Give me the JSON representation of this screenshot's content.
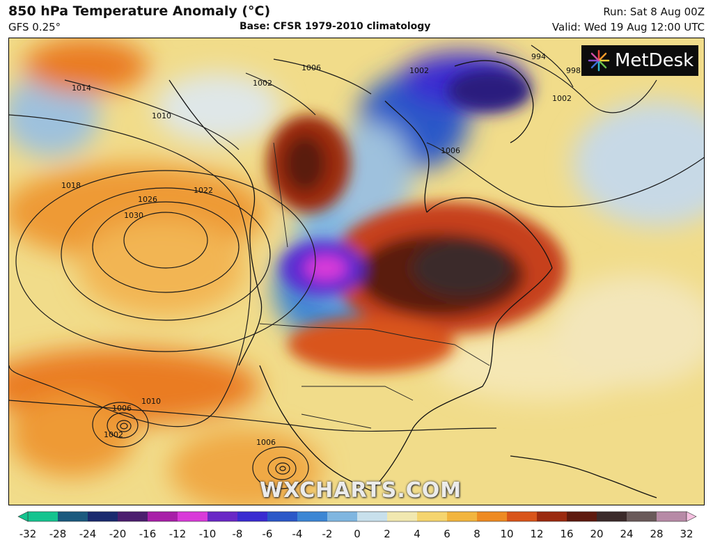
{
  "header": {
    "title": "850 hPa Temperature Anomaly (°C)",
    "model": "GFS 0.25°",
    "base": "Base: CFSR 1979-2010 climatology",
    "run": "Run: Sat 8 Aug 00Z",
    "valid": "Valid: Wed 19 Aug 12:00 UTC"
  },
  "map": {
    "isobar_labels": [
      "1014",
      "1018",
      "1026",
      "1022",
      "1030",
      "1010",
      "1006",
      "1002",
      "1006",
      "1006",
      "1002",
      "1010",
      "998",
      "994",
      "1002",
      "1002",
      "1006"
    ],
    "high_center": "1030",
    "logo_text": "MetDesk",
    "watermark": "WXCHARTS.COM"
  },
  "colorbar": {
    "ticks": [
      "-32",
      "-28",
      "-24",
      "-20",
      "-16",
      "-12",
      "-10",
      "-8",
      "-6",
      "-4",
      "-2",
      "0",
      "2",
      "4",
      "6",
      "8",
      "10",
      "12",
      "16",
      "20",
      "24",
      "28",
      "32"
    ],
    "colors": [
      "#15c48f",
      "#1b5a7e",
      "#1a2a6e",
      "#4b1e6e",
      "#a81fa8",
      "#d93ad9",
      "#6a28c6",
      "#3a2bd1",
      "#2b58c8",
      "#3c86d4",
      "#7fb6e0",
      "#c8e0ec",
      "#f1e8b0",
      "#f5d56e",
      "#f2b53e",
      "#ee8a22",
      "#d9541a",
      "#9b2a10",
      "#5e1a0f",
      "#3b2a2a",
      "#6a5a5a",
      "#b78aa6",
      "#f5c0e0"
    ],
    "palette_notes": "cool colors for negative anomalies, warm colors for positive anomalies"
  }
}
